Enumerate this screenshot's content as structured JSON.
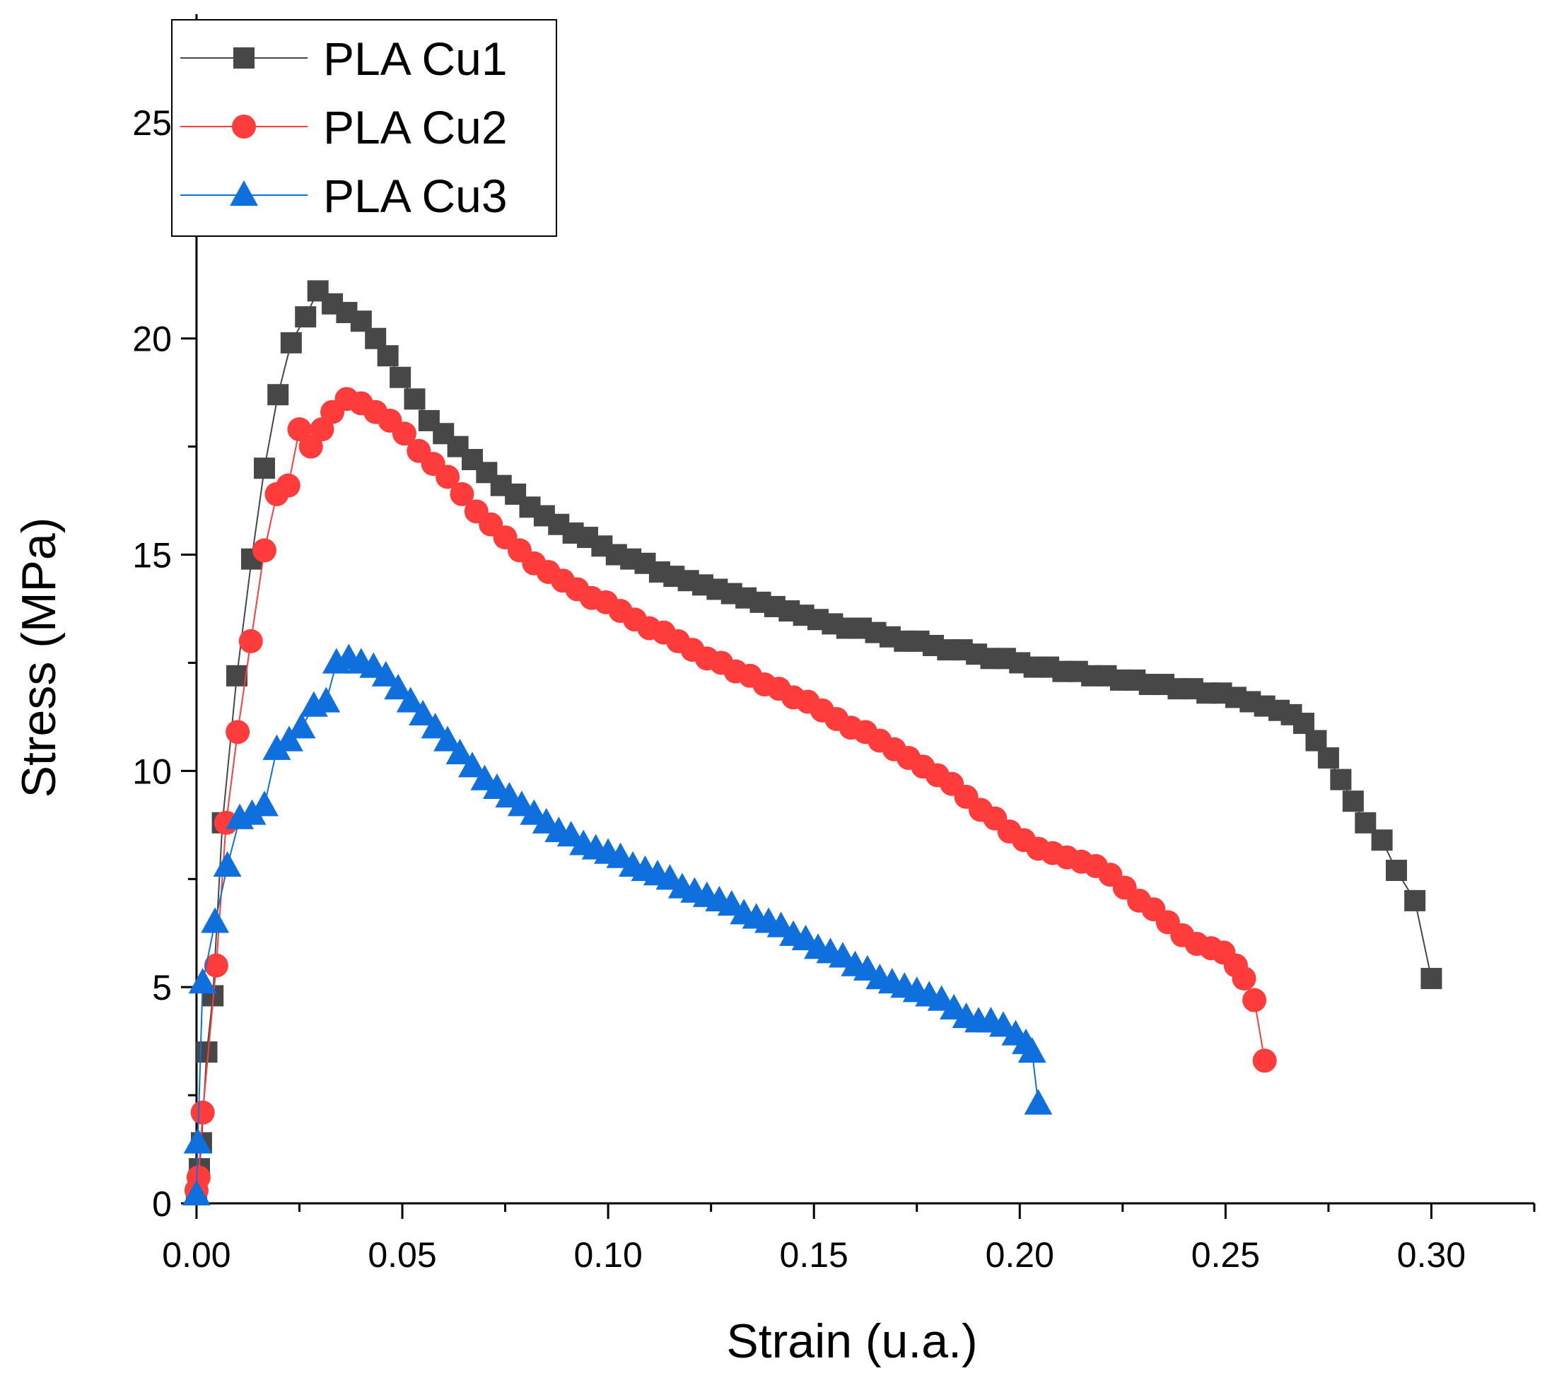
{
  "chart_data": {
    "type": "scatter",
    "title": "",
    "xlabel": "Strain (u.a.)",
    "ylabel": "Stress (MPa)",
    "xlim": [
      -0.006,
      0.325
    ],
    "ylim": [
      0,
      27.5
    ],
    "xticks": [
      0.0,
      0.05,
      0.1,
      0.15,
      0.2,
      0.25,
      0.3
    ],
    "xtick_labels": [
      "0.00",
      "0.05",
      "0.10",
      "0.15",
      "0.20",
      "0.25",
      "0.30"
    ],
    "yticks": [
      0,
      5,
      10,
      15,
      20,
      25
    ],
    "ytick_labels": [
      "0",
      "5",
      "10",
      "15",
      "20",
      "25"
    ],
    "grid": false,
    "legend_position": "top-left",
    "series": [
      {
        "name": "PLA Cu1",
        "color": "#474747",
        "marker": "square",
        "points": [
          [
            0.0,
            0.2
          ],
          [
            0.0007,
            0.8
          ],
          [
            0.0012,
            1.4
          ],
          [
            0.0025,
            3.5
          ],
          [
            0.004,
            4.8
          ],
          [
            0.0063,
            8.8
          ],
          [
            0.0098,
            12.2
          ],
          [
            0.0134,
            14.9
          ],
          [
            0.0165,
            17.0
          ],
          [
            0.0198,
            18.7
          ],
          [
            0.023,
            19.9
          ],
          [
            0.0265,
            20.5
          ],
          [
            0.0295,
            21.1
          ],
          [
            0.033,
            20.8
          ],
          [
            0.0365,
            20.6
          ],
          [
            0.04,
            20.4
          ],
          [
            0.0435,
            20.0
          ],
          [
            0.0465,
            19.6
          ],
          [
            0.0495,
            19.1
          ],
          [
            0.053,
            18.6
          ],
          [
            0.0565,
            18.1
          ],
          [
            0.06,
            17.8
          ],
          [
            0.0635,
            17.5
          ],
          [
            0.067,
            17.2
          ],
          [
            0.0705,
            16.9
          ],
          [
            0.074,
            16.6
          ],
          [
            0.0775,
            16.4
          ],
          [
            0.081,
            16.1
          ],
          [
            0.0845,
            15.9
          ],
          [
            0.088,
            15.7
          ],
          [
            0.0915,
            15.5
          ],
          [
            0.095,
            15.4
          ],
          [
            0.0985,
            15.2
          ],
          [
            0.102,
            15.0
          ],
          [
            0.1055,
            14.9
          ],
          [
            0.109,
            14.8
          ],
          [
            0.1125,
            14.6
          ],
          [
            0.116,
            14.5
          ],
          [
            0.1195,
            14.4
          ],
          [
            0.123,
            14.3
          ],
          [
            0.1265,
            14.2
          ],
          [
            0.13,
            14.1
          ],
          [
            0.1335,
            14.0
          ],
          [
            0.137,
            13.9
          ],
          [
            0.1405,
            13.8
          ],
          [
            0.144,
            13.7
          ],
          [
            0.1475,
            13.6
          ],
          [
            0.151,
            13.5
          ],
          [
            0.1545,
            13.4
          ],
          [
            0.158,
            13.3
          ],
          [
            0.1615,
            13.3
          ],
          [
            0.165,
            13.2
          ],
          [
            0.1685,
            13.1
          ],
          [
            0.172,
            13.0
          ],
          [
            0.1755,
            13.0
          ],
          [
            0.179,
            12.9
          ],
          [
            0.1825,
            12.8
          ],
          [
            0.186,
            12.8
          ],
          [
            0.1895,
            12.7
          ],
          [
            0.193,
            12.6
          ],
          [
            0.1965,
            12.6
          ],
          [
            0.2,
            12.5
          ],
          [
            0.2035,
            12.4
          ],
          [
            0.207,
            12.4
          ],
          [
            0.2105,
            12.3
          ],
          [
            0.214,
            12.3
          ],
          [
            0.2175,
            12.2
          ],
          [
            0.221,
            12.2
          ],
          [
            0.2245,
            12.1
          ],
          [
            0.228,
            12.1
          ],
          [
            0.2315,
            12.0
          ],
          [
            0.235,
            12.0
          ],
          [
            0.2385,
            11.9
          ],
          [
            0.242,
            11.9
          ],
          [
            0.2455,
            11.8
          ],
          [
            0.249,
            11.8
          ],
          [
            0.2525,
            11.7
          ],
          [
            0.256,
            11.6
          ],
          [
            0.2595,
            11.5
          ],
          [
            0.263,
            11.4
          ],
          [
            0.266,
            11.3
          ],
          [
            0.269,
            11.1
          ],
          [
            0.272,
            10.7
          ],
          [
            0.275,
            10.3
          ],
          [
            0.278,
            9.8
          ],
          [
            0.281,
            9.3
          ],
          [
            0.284,
            8.8
          ],
          [
            0.288,
            8.4
          ],
          [
            0.2915,
            7.7
          ],
          [
            0.296,
            7.0
          ],
          [
            0.3,
            5.2
          ]
        ]
      },
      {
        "name": "PLA Cu2",
        "color": "#ff3c3c",
        "marker": "circle",
        "points": [
          [
            0.0,
            0.3
          ],
          [
            0.0005,
            0.6
          ],
          [
            0.0015,
            2.1
          ],
          [
            0.0048,
            5.5
          ],
          [
            0.0072,
            8.8
          ],
          [
            0.01,
            10.9
          ],
          [
            0.0132,
            13.0
          ],
          [
            0.0165,
            15.1
          ],
          [
            0.0195,
            16.4
          ],
          [
            0.0223,
            16.6
          ],
          [
            0.025,
            17.9
          ],
          [
            0.0278,
            17.5
          ],
          [
            0.0305,
            17.9
          ],
          [
            0.033,
            18.3
          ],
          [
            0.0365,
            18.6
          ],
          [
            0.04,
            18.5
          ],
          [
            0.0435,
            18.3
          ],
          [
            0.047,
            18.1
          ],
          [
            0.0505,
            17.8
          ],
          [
            0.054,
            17.4
          ],
          [
            0.0575,
            17.1
          ],
          [
            0.061,
            16.8
          ],
          [
            0.0645,
            16.4
          ],
          [
            0.068,
            16.0
          ],
          [
            0.0715,
            15.7
          ],
          [
            0.075,
            15.4
          ],
          [
            0.0785,
            15.1
          ],
          [
            0.082,
            14.8
          ],
          [
            0.0855,
            14.6
          ],
          [
            0.089,
            14.4
          ],
          [
            0.0925,
            14.2
          ],
          [
            0.096,
            14.0
          ],
          [
            0.0995,
            13.9
          ],
          [
            0.103,
            13.7
          ],
          [
            0.1065,
            13.5
          ],
          [
            0.11,
            13.3
          ],
          [
            0.1135,
            13.2
          ],
          [
            0.117,
            13.0
          ],
          [
            0.1205,
            12.8
          ],
          [
            0.124,
            12.6
          ],
          [
            0.1275,
            12.5
          ],
          [
            0.131,
            12.3
          ],
          [
            0.1345,
            12.2
          ],
          [
            0.138,
            12.0
          ],
          [
            0.1415,
            11.9
          ],
          [
            0.145,
            11.7
          ],
          [
            0.1485,
            11.6
          ],
          [
            0.152,
            11.4
          ],
          [
            0.1555,
            11.2
          ],
          [
            0.159,
            11.0
          ],
          [
            0.1625,
            10.9
          ],
          [
            0.166,
            10.7
          ],
          [
            0.1695,
            10.5
          ],
          [
            0.173,
            10.3
          ],
          [
            0.1765,
            10.1
          ],
          [
            0.18,
            9.9
          ],
          [
            0.1835,
            9.7
          ],
          [
            0.187,
            9.4
          ],
          [
            0.1905,
            9.1
          ],
          [
            0.194,
            8.9
          ],
          [
            0.1975,
            8.6
          ],
          [
            0.201,
            8.4
          ],
          [
            0.2045,
            8.2
          ],
          [
            0.208,
            8.1
          ],
          [
            0.2115,
            8.0
          ],
          [
            0.215,
            7.9
          ],
          [
            0.2185,
            7.8
          ],
          [
            0.222,
            7.6
          ],
          [
            0.2255,
            7.3
          ],
          [
            0.229,
            7.0
          ],
          [
            0.2325,
            6.8
          ],
          [
            0.236,
            6.5
          ],
          [
            0.2395,
            6.2
          ],
          [
            0.243,
            6.0
          ],
          [
            0.2465,
            5.9
          ],
          [
            0.2495,
            5.8
          ],
          [
            0.2525,
            5.5
          ],
          [
            0.2545,
            5.2
          ],
          [
            0.257,
            4.7
          ],
          [
            0.2595,
            3.3
          ]
        ]
      },
      {
        "name": "PLA Cu3",
        "color": "#0f6fdc",
        "marker": "triangle",
        "points": [
          [
            0.0,
            0.2
          ],
          [
            0.0003,
            1.4
          ],
          [
            0.0015,
            5.1
          ],
          [
            0.0045,
            6.5
          ],
          [
            0.0075,
            7.8
          ],
          [
            0.0105,
            8.9
          ],
          [
            0.0135,
            9.0
          ],
          [
            0.0165,
            9.2
          ],
          [
            0.0195,
            10.5
          ],
          [
            0.0225,
            10.7
          ],
          [
            0.0255,
            11.0
          ],
          [
            0.0285,
            11.5
          ],
          [
            0.0315,
            11.6
          ],
          [
            0.034,
            12.5
          ],
          [
            0.037,
            12.6
          ],
          [
            0.04,
            12.5
          ],
          [
            0.043,
            12.4
          ],
          [
            0.046,
            12.2
          ],
          [
            0.049,
            11.9
          ],
          [
            0.052,
            11.6
          ],
          [
            0.055,
            11.3
          ],
          [
            0.058,
            11.0
          ],
          [
            0.061,
            10.7
          ],
          [
            0.064,
            10.4
          ],
          [
            0.067,
            10.1
          ],
          [
            0.07,
            9.8
          ],
          [
            0.073,
            9.6
          ],
          [
            0.076,
            9.4
          ],
          [
            0.079,
            9.2
          ],
          [
            0.082,
            9.0
          ],
          [
            0.085,
            8.8
          ],
          [
            0.088,
            8.6
          ],
          [
            0.091,
            8.5
          ],
          [
            0.094,
            8.3
          ],
          [
            0.097,
            8.2
          ],
          [
            0.1,
            8.1
          ],
          [
            0.103,
            8.0
          ],
          [
            0.106,
            7.8
          ],
          [
            0.109,
            7.7
          ],
          [
            0.112,
            7.6
          ],
          [
            0.115,
            7.5
          ],
          [
            0.118,
            7.3
          ],
          [
            0.121,
            7.2
          ],
          [
            0.124,
            7.1
          ],
          [
            0.127,
            7.0
          ],
          [
            0.13,
            6.9
          ],
          [
            0.133,
            6.7
          ],
          [
            0.136,
            6.6
          ],
          [
            0.139,
            6.5
          ],
          [
            0.142,
            6.4
          ],
          [
            0.145,
            6.2
          ],
          [
            0.148,
            6.1
          ],
          [
            0.151,
            5.9
          ],
          [
            0.154,
            5.8
          ],
          [
            0.157,
            5.7
          ],
          [
            0.16,
            5.5
          ],
          [
            0.163,
            5.4
          ],
          [
            0.166,
            5.2
          ],
          [
            0.169,
            5.1
          ],
          [
            0.172,
            5.0
          ],
          [
            0.175,
            4.9
          ],
          [
            0.178,
            4.8
          ],
          [
            0.181,
            4.7
          ],
          [
            0.184,
            4.5
          ],
          [
            0.187,
            4.3
          ],
          [
            0.19,
            4.2
          ],
          [
            0.193,
            4.2
          ],
          [
            0.196,
            4.1
          ],
          [
            0.199,
            3.9
          ],
          [
            0.2015,
            3.7
          ],
          [
            0.203,
            3.5
          ],
          [
            0.2045,
            2.3
          ]
        ]
      }
    ]
  }
}
